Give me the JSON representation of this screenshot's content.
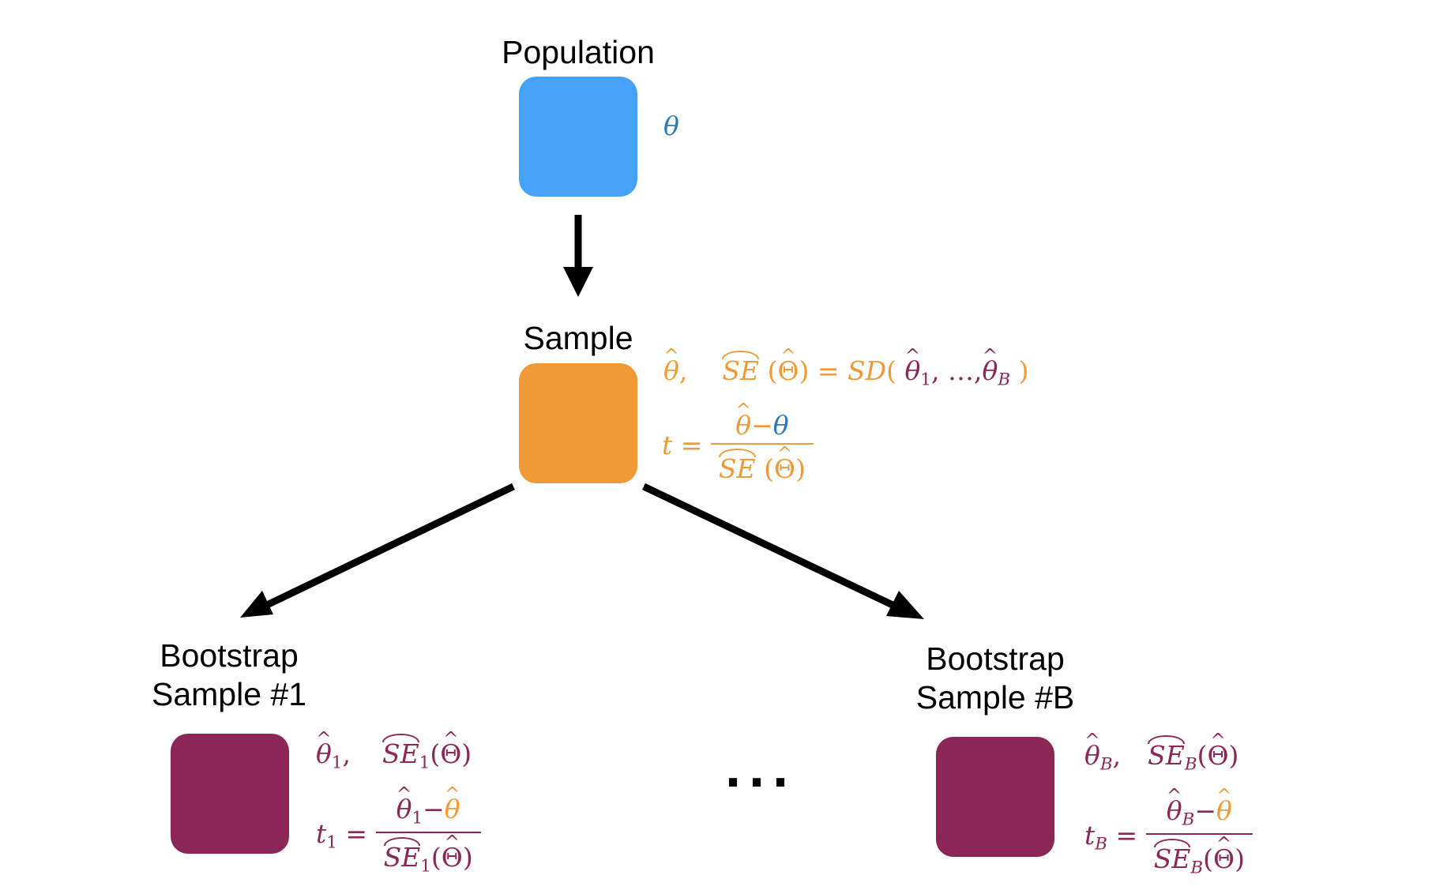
{
  "colors": {
    "population": "#45a2f8",
    "sample": "#f09a37",
    "bootstrap": "#8a2757",
    "theta_text": "#2a7ab8",
    "arrow": "#000000"
  },
  "nodes": {
    "population": {
      "label": "Population"
    },
    "sample": {
      "label": "Sample"
    },
    "boot1": {
      "label_line1": "Bootstrap",
      "label_line2": "Sample #1"
    },
    "bootB": {
      "label_line1": "Bootstrap",
      "label_line2": "Sample #B"
    }
  },
  "ellipsis": "···",
  "math": {
    "theta": "θ",
    "Theta": "Θ",
    "SE": "SE",
    "SD": "SD",
    "t": "t",
    "eq": "=",
    "minus": "−",
    "comma": ",",
    "lparen": "(",
    "rparen": ")",
    "ldots": "…",
    "sub_1": "1",
    "sub_B": "B"
  }
}
